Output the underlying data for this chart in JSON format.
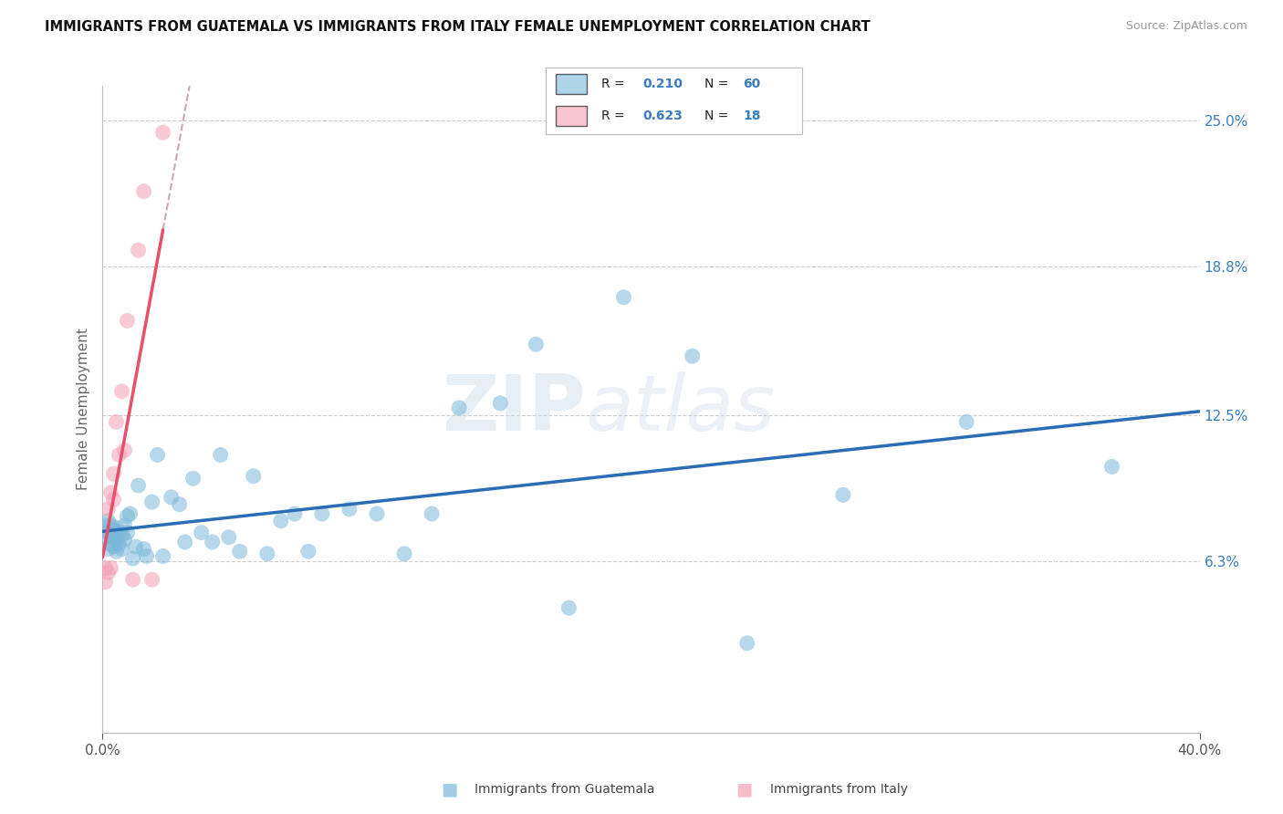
{
  "title": "IMMIGRANTS FROM GUATEMALA VS IMMIGRANTS FROM ITALY FEMALE UNEMPLOYMENT CORRELATION CHART",
  "source": "Source: ZipAtlas.com",
  "ylabel": "Female Unemployment",
  "xmin": 0.0,
  "xmax": 0.4,
  "ymin": -0.01,
  "ymax": 0.265,
  "ytick_vals": [
    0.063,
    0.125,
    0.188,
    0.25
  ],
  "ytick_labels": [
    "6.3%",
    "12.5%",
    "18.8%",
    "25.0%"
  ],
  "xtick_vals": [
    0.0,
    0.4
  ],
  "xtick_labels": [
    "0.0%",
    "40.0%"
  ],
  "guatemala_color": "#7ab8d9",
  "italy_color": "#f4a0b5",
  "trend_blue": "#2a6db5",
  "trend_pink": "#e8506a",
  "trend_dash_color": "#ccaaaa",
  "guatemala_R": 0.21,
  "guatemala_N": 60,
  "italy_R": 0.623,
  "italy_N": 18,
  "legend_label_guatemala": "Immigrants from Guatemala",
  "legend_label_italy": "Immigrants from Italy",
  "watermark_zip": "ZIP",
  "watermark_atlas": "atlas",
  "guatemala_x": [
    0.001,
    0.001,
    0.002,
    0.002,
    0.002,
    0.003,
    0.003,
    0.003,
    0.004,
    0.004,
    0.004,
    0.005,
    0.005,
    0.005,
    0.006,
    0.006,
    0.007,
    0.007,
    0.008,
    0.008,
    0.009,
    0.009,
    0.01,
    0.011,
    0.012,
    0.013,
    0.015,
    0.016,
    0.018,
    0.02,
    0.022,
    0.025,
    0.028,
    0.03,
    0.033,
    0.036,
    0.04,
    0.043,
    0.046,
    0.05,
    0.055,
    0.06,
    0.065,
    0.07,
    0.075,
    0.08,
    0.09,
    0.1,
    0.11,
    0.12,
    0.13,
    0.145,
    0.158,
    0.17,
    0.19,
    0.215,
    0.235,
    0.27,
    0.315,
    0.368
  ],
  "guatemala_y": [
    0.073,
    0.078,
    0.068,
    0.075,
    0.08,
    0.07,
    0.074,
    0.078,
    0.069,
    0.073,
    0.076,
    0.067,
    0.072,
    0.077,
    0.07,
    0.075,
    0.068,
    0.074,
    0.072,
    0.078,
    0.075,
    0.082,
    0.083,
    0.064,
    0.069,
    0.095,
    0.068,
    0.065,
    0.088,
    0.108,
    0.065,
    0.09,
    0.087,
    0.071,
    0.098,
    0.075,
    0.071,
    0.108,
    0.073,
    0.067,
    0.099,
    0.066,
    0.08,
    0.083,
    0.067,
    0.083,
    0.085,
    0.083,
    0.066,
    0.083,
    0.128,
    0.13,
    0.155,
    0.043,
    0.175,
    0.15,
    0.028,
    0.091,
    0.122,
    0.103
  ],
  "italy_x": [
    0.001,
    0.001,
    0.002,
    0.002,
    0.003,
    0.003,
    0.004,
    0.004,
    0.005,
    0.006,
    0.007,
    0.008,
    0.009,
    0.011,
    0.013,
    0.015,
    0.018,
    0.022
  ],
  "italy_y": [
    0.06,
    0.054,
    0.058,
    0.085,
    0.092,
    0.06,
    0.089,
    0.1,
    0.122,
    0.108,
    0.135,
    0.11,
    0.165,
    0.055,
    0.195,
    0.22,
    0.055,
    0.245
  ]
}
